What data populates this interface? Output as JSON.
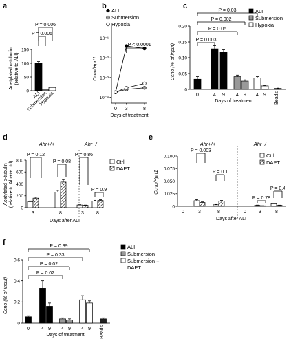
{
  "chart_data": [
    {
      "panel": "a",
      "type": "bar",
      "ylabel": "Acetylated α-tubulin (relative to ALI)",
      "ylim": [
        0,
        150
      ],
      "yticks": [
        0,
        50,
        100,
        150
      ],
      "categories": [
        "ALI",
        "Submersion",
        "Hypoxia"
      ],
      "values": [
        100,
        5,
        12
      ],
      "errors": [
        6,
        1,
        2
      ],
      "fills": [
        "#000000",
        "#999999",
        "#ffffff"
      ],
      "pvalues": [
        {
          "label": "P = 0.006",
          "from": 0,
          "to": 2
        },
        {
          "label": "P = 0.005",
          "from": 0,
          "to": 1
        }
      ]
    },
    {
      "panel": "b",
      "type": "line",
      "ylabel": "Ccno/Hprt1",
      "xlabel": "Days of treatment",
      "yscale": "log",
      "ylim": [
        5e-05,
        0.2
      ],
      "ytick_labels": [
        "10⁻¹",
        "10⁻²",
        "10⁻³",
        "10⁻⁴"
      ],
      "yticks": [
        0.1,
        0.01,
        0.001,
        0.0001
      ],
      "x": [
        0,
        3,
        8
      ],
      "series": [
        {
          "name": "ALI",
          "values": [
            0.00018,
            0.04,
            0.03
          ],
          "marker": "filled"
        },
        {
          "name": "Submersion",
          "values": [
            0.00018,
            0.00025,
            0.0003
          ],
          "marker": "grey"
        },
        {
          "name": "Hypoxia",
          "values": [
            0.00018,
            0.0003,
            0.0005
          ],
          "marker": "open"
        }
      ],
      "pvalue": "P < 0.0001"
    },
    {
      "panel": "c",
      "type": "bar",
      "ylabel": "Ccno (% of input)",
      "xlabel": "Days of treatment",
      "ylim": [
        0,
        0.2
      ],
      "yticks": [
        0,
        0.05,
        0.1,
        0.15,
        0.2
      ],
      "ytick_labels": [
        "0",
        "0.05",
        "0.10",
        "0.15",
        "0.20"
      ],
      "categories": [
        "0",
        "4",
        "9",
        "4",
        "9",
        "4",
        "9",
        "Beads"
      ],
      "values": [
        0.032,
        0.128,
        0.117,
        0.04,
        0.026,
        0.036,
        0.011,
        0.003
      ],
      "errors": [
        0.008,
        0.01,
        0.008,
        0.005,
        0.004,
        0.004,
        0.002,
        0.001
      ],
      "groups": [
        "ALI",
        "ALI",
        "ALI",
        "Submersion",
        "Submersion",
        "Hypoxia",
        "Hypoxia",
        "Beads"
      ],
      "legend": [
        "ALI",
        "Submersion",
        "Hypoxia"
      ],
      "pvalues": [
        "P = 0.03",
        "P = 0.002",
        "P = 0.05",
        "P = 0.003"
      ]
    },
    {
      "panel": "d",
      "type": "bar",
      "ylabel": "Acetylated α-tubulin (relative to Ahr+/+ ctrl)",
      "xlabel": "Days after ALI",
      "ylim": [
        0,
        800
      ],
      "yticks": [
        0,
        200,
        400,
        600,
        800
      ],
      "groups": [
        "Ahr+/+",
        "Ahr−/−"
      ],
      "categories": [
        "3",
        "8",
        "3",
        "8"
      ],
      "series": [
        {
          "name": "Ctrl",
          "values": [
            100,
            260,
            45,
            110
          ]
        },
        {
          "name": "DAPT",
          "values": [
            160,
            430,
            40,
            120
          ]
        }
      ],
      "pvalues": [
        "P = 0.12",
        "P = 0.08",
        "P = 0.86",
        "P = 0.9"
      ]
    },
    {
      "panel": "e",
      "type": "bar",
      "ylabel": "Ccno/Hprt1",
      "xlabel": "Days after ALI",
      "ylim": [
        0,
        0.1
      ],
      "yticks": [
        0,
        0.025,
        0.05,
        0.075,
        0.1
      ],
      "ytick_labels": [
        "0",
        "0.025",
        "0.050",
        "0.075",
        "0.100"
      ],
      "groups": [
        "Ahr+/+",
        "Ahr−/−"
      ],
      "categories": [
        "0",
        "3",
        "8",
        "0",
        "3",
        "8"
      ],
      "series": [
        {
          "name": "Ctrl",
          "values": [
            0.0,
            0.011,
            0.003,
            0.0,
            0.002,
            0.005
          ]
        },
        {
          "name": "DAPT",
          "values": [
            null,
            0.0075,
            0.01,
            null,
            0.001,
            0.002
          ]
        }
      ],
      "pvalues": [
        "P = 0.003",
        "P = 0.1",
        "P = 0.78",
        "P = 0.4"
      ]
    },
    {
      "panel": "f",
      "type": "bar",
      "ylabel": "Ccno (% of input)",
      "xlabel": "Days of treatment",
      "ylim": [
        0,
        0.6
      ],
      "yticks": [
        0,
        0.2,
        0.4,
        0.6
      ],
      "ytick_labels": [
        "0",
        "0.2",
        "0.4",
        "0.6"
      ],
      "categories": [
        "0",
        "4",
        "9",
        "4",
        "9",
        "4",
        "9",
        "Beads"
      ],
      "values": [
        0.06,
        0.33,
        0.16,
        0.04,
        0.03,
        0.22,
        0.19,
        0.04
      ],
      "errors": [
        0.01,
        0.07,
        0.03,
        0.01,
        0.01,
        0.04,
        0.02,
        0.01
      ],
      "groups": [
        "ALI",
        "ALI",
        "ALI",
        "Submersion",
        "Submersion",
        "Submersion + DAPT",
        "Submersion + DAPT",
        "Beads"
      ],
      "legend": [
        "ALI",
        "Submersion",
        "Submersion + DAPT"
      ],
      "pvalues": [
        "P = 0.39",
        "P = 0.33",
        "P = 0.02",
        "P = 0.02"
      ]
    }
  ],
  "panel_labels": [
    "a",
    "b",
    "c",
    "d",
    "e",
    "f"
  ],
  "texts": {
    "a_ylabel1": "Acetylated α-tubulin",
    "a_ylabel2": "(relative to ALI)",
    "b_ylabel": "Ccno/Hprt1",
    "b_xlabel": "Days of treatment",
    "c_ylabel": "Ccno (% of input)",
    "c_xlabel": "Days of treatment",
    "d_ylabel1": "Acetylated α-tubulin",
    "d_ylabel2": "(relative to Ahr+/+ ctrl)",
    "d_xlabel": "Days after ALI",
    "e_ylabel": "Ccno/Hprt1",
    "e_xlabel": "Days after ALI",
    "f_ylabel": "Ccno (% of input)",
    "f_xlabel": "Days of treatment",
    "ahr_pos": "Ahr+/+",
    "ahr_neg": "Ahr−/−",
    "ctrl": "Ctrl",
    "dapt": "DAPT",
    "beads": "Beads"
  },
  "colors": {
    "black": "#000000",
    "grey": "#999999",
    "light": "#cccccc",
    "white": "#ffffff"
  }
}
